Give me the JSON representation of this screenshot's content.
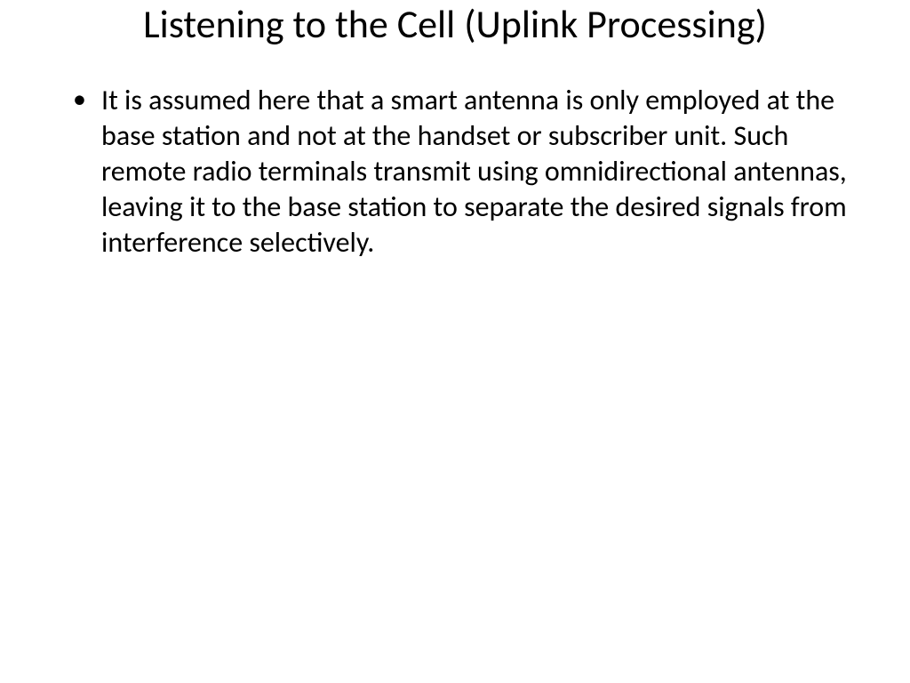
{
  "slide": {
    "title": "Listening to the Cell (Uplink Processing)",
    "bullets": [
      "It is assumed here that a smart antenna is only employed at the base station and not at the handset or subscriber unit. Such remote radio terminals transmit using omnidirectional antennas, leaving it to the base station to separate the desired signals from interference selectively."
    ],
    "background_color": "#ffffff",
    "text_color": "#000000",
    "title_fontsize": 44,
    "body_fontsize": 32,
    "font_family": "Calibri"
  }
}
